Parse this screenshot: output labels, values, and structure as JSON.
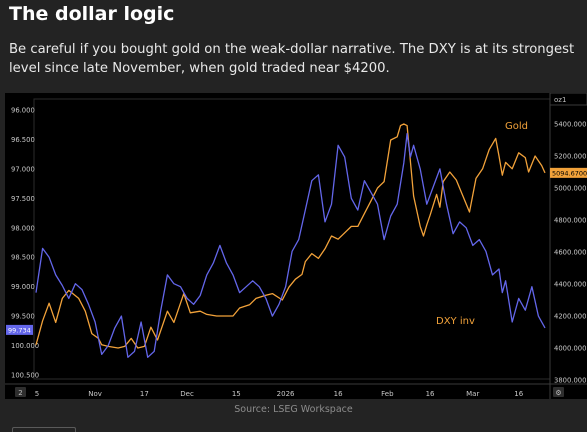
{
  "title": "The dollar logic",
  "subtitle": "Be careful if you bought gold on the weak-dollar narrative. The DXY is at its strongest level since late November, when gold traded near $4200.",
  "source": "Source: LSEG Workspace",
  "chart_data": {
    "type": "line",
    "x_axis": {
      "tick_labels": [
        "5",
        "Nov",
        "17",
        "Dec",
        "15",
        "2026",
        "16",
        "Feb",
        "16",
        "Mar",
        "16"
      ],
      "corner_label": "2"
    },
    "left_axis": {
      "inverted": true,
      "range": [
        96.0,
        100.5
      ],
      "tick_labels": [
        "96.000",
        "96.500",
        "97.000",
        "97.500",
        "98.000",
        "98.500",
        "99.000",
        "99.500",
        "100.000",
        "100.500"
      ],
      "current_value": "99.734"
    },
    "right_axis": {
      "header": "oz1",
      "range": [
        3800,
        5600
      ],
      "tick_labels": [
        "5400.000",
        "5200.000",
        "5000.000",
        "4800.000",
        "4600.000",
        "4400.000",
        "4200.000",
        "4000.000",
        "3800.000"
      ],
      "current_value": "5094.6700"
    },
    "series": [
      {
        "name": "Gold",
        "axis": "right",
        "color": "#f2a23a",
        "x": [
          0,
          2,
          4,
          6,
          8,
          10,
          13,
          15,
          17,
          19,
          20,
          22,
          25,
          27,
          29,
          31,
          33,
          35,
          37,
          40,
          42,
          45,
          47,
          50,
          52,
          55,
          57,
          60,
          62,
          65,
          67,
          70,
          72,
          75,
          77,
          79,
          81,
          82,
          84,
          86,
          88,
          90,
          92,
          94,
          96,
          98,
          100,
          102,
          104,
          106,
          108,
          110,
          111,
          112,
          113,
          115,
          117,
          118,
          119,
          120,
          122,
          123,
          124,
          126,
          128,
          130,
          132,
          134,
          136,
          138,
          140,
          141,
          142,
          143,
          145,
          147,
          149,
          150,
          152,
          154,
          155
        ],
        "y": [
          4020,
          4170,
          4280,
          4160,
          4310,
          4360,
          4310,
          4230,
          4090,
          4060,
          4020,
          4010,
          4000,
          4010,
          4060,
          4000,
          4010,
          4130,
          4050,
          4230,
          4160,
          4340,
          4220,
          4230,
          4210,
          4200,
          4200,
          4200,
          4250,
          4270,
          4310,
          4330,
          4340,
          4300,
          4380,
          4430,
          4460,
          4540,
          4590,
          4560,
          4620,
          4700,
          4680,
          4720,
          4760,
          4760,
          4840,
          4920,
          5000,
          5040,
          5300,
          5320,
          5390,
          5400,
          5390,
          4950,
          4760,
          4700,
          4770,
          4830,
          4960,
          4880,
          5040,
          5100,
          5050,
          4950,
          4850,
          5060,
          5120,
          5240,
          5310,
          5200,
          5080,
          5160,
          5120,
          5220,
          5190,
          5100,
          5200,
          5140,
          5094.67
        ]
      },
      {
        "name": "DXY inv",
        "axis": "left",
        "color": "#6366ea",
        "x": [
          0,
          2,
          4,
          6,
          8,
          10,
          12,
          14,
          16,
          18,
          20,
          22,
          24,
          26,
          28,
          30,
          32,
          34,
          36,
          38,
          40,
          42,
          44,
          46,
          48,
          50,
          52,
          54,
          56,
          58,
          60,
          62,
          64,
          66,
          68,
          70,
          72,
          74,
          76,
          78,
          80,
          82,
          84,
          86,
          88,
          90,
          92,
          94,
          96,
          98,
          100,
          102,
          104,
          106,
          108,
          110,
          112,
          113,
          114,
          115,
          117,
          119,
          121,
          123,
          125,
          127,
          129,
          131,
          133,
          135,
          137,
          139,
          141,
          142,
          143,
          145,
          147,
          149,
          151,
          153,
          155
        ],
        "y": [
          99.1,
          98.35,
          98.5,
          98.8,
          98.98,
          99.2,
          98.95,
          99.05,
          99.3,
          99.6,
          100.15,
          100.0,
          99.7,
          99.5,
          100.2,
          100.1,
          99.6,
          100.2,
          100.1,
          99.4,
          98.8,
          98.95,
          99.0,
          99.2,
          99.3,
          99.15,
          98.8,
          98.6,
          98.3,
          98.6,
          98.8,
          99.1,
          99.0,
          98.9,
          99.0,
          99.2,
          99.5,
          99.3,
          99.0,
          98.4,
          98.2,
          97.7,
          97.2,
          97.1,
          97.9,
          97.6,
          96.6,
          96.8,
          97.5,
          97.7,
          97.2,
          97.4,
          97.6,
          98.2,
          97.8,
          97.6,
          96.9,
          96.4,
          96.8,
          96.6,
          97.0,
          97.6,
          97.3,
          97.0,
          97.6,
          98.1,
          97.9,
          98.0,
          98.3,
          98.2,
          98.4,
          98.8,
          98.7,
          99.1,
          98.9,
          99.6,
          99.2,
          99.4,
          99.0,
          99.5,
          99.7
        ]
      }
    ],
    "grid": false,
    "legend": "inline labels near series ends"
  }
}
